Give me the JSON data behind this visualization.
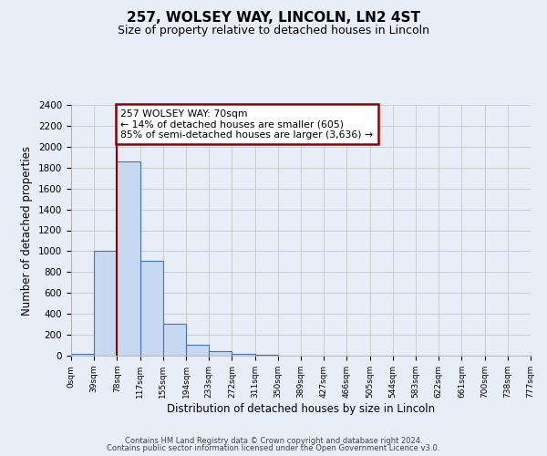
{
  "title": "257, WOLSEY WAY, LINCOLN, LN2 4ST",
  "subtitle": "Size of property relative to detached houses in Lincoln",
  "xlabel": "Distribution of detached houses by size in Lincoln",
  "ylabel": "Number of detached properties",
  "bin_labels": [
    "0sqm",
    "39sqm",
    "78sqm",
    "117sqm",
    "155sqm",
    "194sqm",
    "233sqm",
    "272sqm",
    "311sqm",
    "350sqm",
    "389sqm",
    "427sqm",
    "466sqm",
    "505sqm",
    "544sqm",
    "583sqm",
    "622sqm",
    "661sqm",
    "700sqm",
    "738sqm",
    "777sqm"
  ],
  "bar_heights": [
    20,
    1005,
    1860,
    905,
    305,
    105,
    45,
    18,
    12,
    0,
    0,
    0,
    0,
    0,
    0,
    0,
    0,
    0,
    0,
    0
  ],
  "bar_color": "#c6d9f0",
  "bar_edge_color": "#4472c4",
  "vline_x": 2,
  "vline_color": "#8b0000",
  "annotation_text": "257 WOLSEY WAY: 70sqm\n← 14% of detached houses are smaller (605)\n85% of semi-detached houses are larger (3,636) →",
  "annotation_box_edge": "#8b0000",
  "ylim": [
    0,
    2400
  ],
  "yticks": [
    0,
    200,
    400,
    600,
    800,
    1000,
    1200,
    1400,
    1600,
    1800,
    2000,
    2200,
    2400
  ],
  "grid_color": "#cccccc",
  "background_color": "#e8eef7",
  "footer_line1": "Contains HM Land Registry data © Crown copyright and database right 2024.",
  "footer_line2": "Contains public sector information licensed under the Open Government Licence v3.0."
}
